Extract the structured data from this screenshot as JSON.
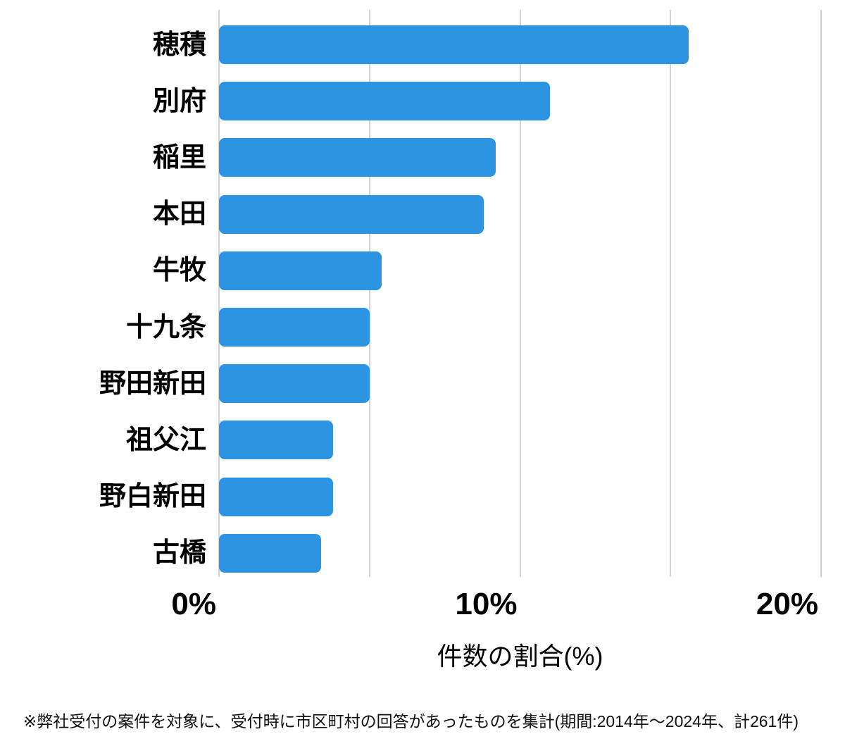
{
  "chart_data": {
    "type": "bar",
    "orientation": "horizontal",
    "title": "",
    "categories": [
      "穂積",
      "別府",
      "稲里",
      "本田",
      "牛牧",
      "十九条",
      "野田新田",
      "祖父江",
      "野白新田",
      "古橋"
    ],
    "values": [
      15.6,
      11.0,
      9.2,
      8.8,
      5.4,
      5.0,
      5.0,
      3.8,
      3.8,
      3.4
    ],
    "xlabel": "件数の割合(%)",
    "ylabel": "",
    "xlim": [
      0,
      20
    ],
    "x_ticks": [
      {
        "label": "0%",
        "value": 0
      },
      {
        "label": "10%",
        "value": 10
      },
      {
        "label": "20%",
        "value": 20
      }
    ],
    "gridline_values": [
      0,
      5,
      10,
      15,
      20
    ],
    "grid": "vertical-only",
    "legend": "none",
    "bar_color": "#2d94e1",
    "grid_color": "#d2d2d2",
    "text_color": "#000000"
  },
  "footer": {
    "note": "※弊社受付の案件を対象に、受付時に市区町村の回答があったものを集計(期間:2014年〜2024年、計261件)"
  }
}
